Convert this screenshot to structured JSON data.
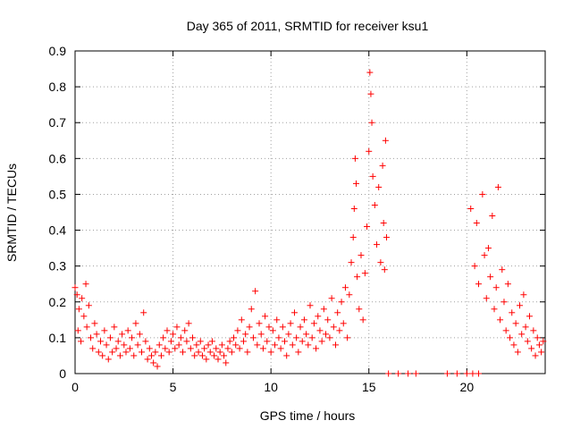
{
  "chart_data": {
    "type": "scatter",
    "title": "Day 365 of 2011, SRMTID for receiver ksu1",
    "xlabel": "GPS time / hours",
    "ylabel": "SRMTID / TECUs",
    "xlim": [
      0,
      24
    ],
    "ylim": [
      0,
      0.9
    ],
    "xticks": [
      0,
      5,
      10,
      15,
      20
    ],
    "xtick_labels": [
      "0",
      "5",
      "10",
      "15",
      "20"
    ],
    "yticks": [
      0,
      0.1,
      0.2,
      0.3,
      0.4,
      0.5,
      0.6,
      0.7,
      0.8,
      0.9
    ],
    "ytick_labels": [
      "0",
      "0.1",
      "0.2",
      "0.3",
      "0.4",
      "0.5",
      "0.6",
      "0.7",
      "0.8",
      "0.9"
    ],
    "grid": true,
    "marker": "+",
    "color": "#ff0000",
    "series": [
      {
        "name": "SRMTID",
        "points": [
          [
            0.0,
            0.24
          ],
          [
            0.1,
            0.22
          ],
          [
            0.15,
            0.12
          ],
          [
            0.2,
            0.18
          ],
          [
            0.3,
            0.09
          ],
          [
            0.35,
            0.21
          ],
          [
            0.45,
            0.16
          ],
          [
            0.55,
            0.25
          ],
          [
            0.6,
            0.13
          ],
          [
            0.7,
            0.19
          ],
          [
            0.8,
            0.1
          ],
          [
            0.9,
            0.07
          ],
          [
            1.0,
            0.14
          ],
          [
            1.1,
            0.11
          ],
          [
            1.2,
            0.06
          ],
          [
            1.3,
            0.09
          ],
          [
            1.4,
            0.05
          ],
          [
            1.5,
            0.12
          ],
          [
            1.6,
            0.08
          ],
          [
            1.7,
            0.04
          ],
          [
            1.8,
            0.1
          ],
          [
            1.9,
            0.06
          ],
          [
            2.0,
            0.13
          ],
          [
            2.1,
            0.07
          ],
          [
            2.2,
            0.09
          ],
          [
            2.3,
            0.05
          ],
          [
            2.4,
            0.11
          ],
          [
            2.5,
            0.08
          ],
          [
            2.6,
            0.06
          ],
          [
            2.7,
            0.12
          ],
          [
            2.8,
            0.07
          ],
          [
            2.9,
            0.1
          ],
          [
            3.0,
            0.05
          ],
          [
            3.1,
            0.14
          ],
          [
            3.2,
            0.08
          ],
          [
            3.3,
            0.11
          ],
          [
            3.4,
            0.06
          ],
          [
            3.5,
            0.17
          ],
          [
            3.6,
            0.09
          ],
          [
            3.7,
            0.04
          ],
          [
            3.8,
            0.07
          ],
          [
            3.9,
            0.05
          ],
          [
            4.0,
            0.03
          ],
          [
            4.1,
            0.06
          ],
          [
            4.2,
            0.02
          ],
          [
            4.3,
            0.08
          ],
          [
            4.4,
            0.05
          ],
          [
            4.5,
            0.1
          ],
          [
            4.6,
            0.07
          ],
          [
            4.7,
            0.12
          ],
          [
            4.8,
            0.06
          ],
          [
            4.9,
            0.09
          ],
          [
            5.0,
            0.11
          ],
          [
            5.1,
            0.07
          ],
          [
            5.2,
            0.13
          ],
          [
            5.3,
            0.08
          ],
          [
            5.4,
            0.1
          ],
          [
            5.5,
            0.06
          ],
          [
            5.6,
            0.12
          ],
          [
            5.7,
            0.09
          ],
          [
            5.8,
            0.14
          ],
          [
            5.9,
            0.07
          ],
          [
            6.0,
            0.1
          ],
          [
            6.1,
            0.05
          ],
          [
            6.2,
            0.08
          ],
          [
            6.3,
            0.06
          ],
          [
            6.4,
            0.09
          ],
          [
            6.5,
            0.05
          ],
          [
            6.6,
            0.07
          ],
          [
            6.7,
            0.04
          ],
          [
            6.8,
            0.08
          ],
          [
            6.9,
            0.06
          ],
          [
            7.0,
            0.09
          ],
          [
            7.1,
            0.05
          ],
          [
            7.2,
            0.07
          ],
          [
            7.3,
            0.04
          ],
          [
            7.4,
            0.06
          ],
          [
            7.5,
            0.08
          ],
          [
            7.6,
            0.05
          ],
          [
            7.7,
            0.03
          ],
          [
            7.8,
            0.07
          ],
          [
            7.9,
            0.09
          ],
          [
            8.0,
            0.06
          ],
          [
            8.1,
            0.1
          ],
          [
            8.2,
            0.08
          ],
          [
            8.3,
            0.12
          ],
          [
            8.4,
            0.07
          ],
          [
            8.5,
            0.15
          ],
          [
            8.6,
            0.09
          ],
          [
            8.7,
            0.11
          ],
          [
            8.8,
            0.06
          ],
          [
            8.9,
            0.13
          ],
          [
            9.0,
            0.18
          ],
          [
            9.1,
            0.1
          ],
          [
            9.2,
            0.23
          ],
          [
            9.3,
            0.08
          ],
          [
            9.4,
            0.14
          ],
          [
            9.5,
            0.11
          ],
          [
            9.6,
            0.07
          ],
          [
            9.7,
            0.16
          ],
          [
            9.8,
            0.09
          ],
          [
            9.9,
            0.13
          ],
          [
            10.0,
            0.06
          ],
          [
            10.1,
            0.12
          ],
          [
            10.2,
            0.08
          ],
          [
            10.3,
            0.15
          ],
          [
            10.4,
            0.1
          ],
          [
            10.5,
            0.07
          ],
          [
            10.6,
            0.13
          ],
          [
            10.7,
            0.09
          ],
          [
            10.8,
            0.05
          ],
          [
            10.9,
            0.11
          ],
          [
            11.0,
            0.14
          ],
          [
            11.1,
            0.08
          ],
          [
            11.2,
            0.17
          ],
          [
            11.3,
            0.1
          ],
          [
            11.4,
            0.06
          ],
          [
            11.5,
            0.13
          ],
          [
            11.6,
            0.09
          ],
          [
            11.7,
            0.15
          ],
          [
            11.8,
            0.11
          ],
          [
            11.9,
            0.08
          ],
          [
            12.0,
            0.19
          ],
          [
            12.1,
            0.1
          ],
          [
            12.2,
            0.14
          ],
          [
            12.3,
            0.07
          ],
          [
            12.4,
            0.16
          ],
          [
            12.5,
            0.12
          ],
          [
            12.6,
            0.09
          ],
          [
            12.7,
            0.18
          ],
          [
            12.8,
            0.11
          ],
          [
            12.9,
            0.15
          ],
          [
            13.0,
            0.1
          ],
          [
            13.1,
            0.21
          ],
          [
            13.2,
            0.13
          ],
          [
            13.3,
            0.08
          ],
          [
            13.4,
            0.17
          ],
          [
            13.5,
            0.12
          ],
          [
            13.6,
            0.2
          ],
          [
            13.7,
            0.14
          ],
          [
            13.8,
            0.24
          ],
          [
            13.9,
            0.1
          ],
          [
            14.0,
            0.22
          ],
          [
            14.1,
            0.31
          ],
          [
            14.2,
            0.38
          ],
          [
            14.25,
            0.46
          ],
          [
            14.3,
            0.6
          ],
          [
            14.35,
            0.53
          ],
          [
            14.4,
            0.27
          ],
          [
            14.5,
            0.18
          ],
          [
            14.6,
            0.33
          ],
          [
            14.7,
            0.15
          ],
          [
            14.8,
            0.28
          ],
          [
            14.9,
            0.41
          ],
          [
            15.0,
            0.62
          ],
          [
            15.05,
            0.84
          ],
          [
            15.1,
            0.78
          ],
          [
            15.15,
            0.7
          ],
          [
            15.2,
            0.55
          ],
          [
            15.3,
            0.47
          ],
          [
            15.4,
            0.36
          ],
          [
            15.5,
            0.52
          ],
          [
            15.6,
            0.31
          ],
          [
            15.7,
            0.58
          ],
          [
            15.75,
            0.42
          ],
          [
            15.8,
            0.29
          ],
          [
            15.85,
            0.65
          ],
          [
            15.9,
            0.38
          ],
          [
            16.0,
            0.0
          ],
          [
            16.5,
            0.0
          ],
          [
            17.0,
            0.0
          ],
          [
            17.4,
            0.0
          ],
          [
            19.0,
            0.0
          ],
          [
            19.5,
            0.0
          ],
          [
            20.0,
            0.0
          ],
          [
            20.3,
            0.0
          ],
          [
            20.6,
            0.0
          ],
          [
            20.2,
            0.46
          ],
          [
            20.4,
            0.3
          ],
          [
            20.5,
            0.42
          ],
          [
            20.6,
            0.25
          ],
          [
            20.8,
            0.5
          ],
          [
            20.9,
            0.33
          ],
          [
            21.0,
            0.21
          ],
          [
            21.1,
            0.35
          ],
          [
            21.2,
            0.27
          ],
          [
            21.3,
            0.44
          ],
          [
            21.4,
            0.18
          ],
          [
            21.5,
            0.24
          ],
          [
            21.6,
            0.52
          ],
          [
            21.7,
            0.15
          ],
          [
            21.8,
            0.29
          ],
          [
            21.9,
            0.2
          ],
          [
            22.0,
            0.12
          ],
          [
            22.1,
            0.25
          ],
          [
            22.2,
            0.1
          ],
          [
            22.3,
            0.17
          ],
          [
            22.4,
            0.08
          ],
          [
            22.5,
            0.14
          ],
          [
            22.6,
            0.06
          ],
          [
            22.7,
            0.19
          ],
          [
            22.8,
            0.11
          ],
          [
            22.9,
            0.22
          ],
          [
            23.0,
            0.13
          ],
          [
            23.1,
            0.09
          ],
          [
            23.2,
            0.16
          ],
          [
            23.3,
            0.07
          ],
          [
            23.4,
            0.12
          ],
          [
            23.5,
            0.05
          ],
          [
            23.6,
            0.1
          ],
          [
            23.7,
            0.08
          ],
          [
            23.8,
            0.06
          ],
          [
            23.9,
            0.09
          ]
        ]
      }
    ]
  }
}
